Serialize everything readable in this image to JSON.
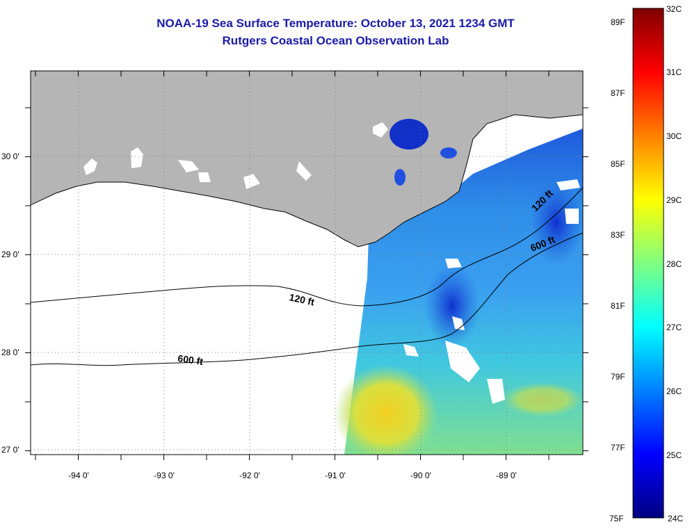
{
  "header": {
    "title": "NOAA-19 Sea Surface Temperature:  October 13, 2021 1234 GMT",
    "subtitle": "Rutgers Coastal Ocean Observation Lab"
  },
  "map": {
    "lat_labels": [
      "30 0'",
      "29 0'",
      "28 0'",
      "27 0'"
    ],
    "lon_labels": [
      "-94 0'",
      "-93 0'",
      "-92 0'",
      "-91 0'",
      "-90 0'",
      "-89 0'"
    ],
    "contours": [
      {
        "label": "120 ft",
        "depth_ft": 120
      },
      {
        "label": "600 ft",
        "depth_ft": 600
      }
    ],
    "colors": {
      "land": "#b5b5b5",
      "no_data": "#ffffff",
      "frame": "#000000"
    }
  },
  "colorbar": {
    "min_c": 24,
    "max_c": 32,
    "celsius_labels": [
      "32C",
      "31C",
      "30C",
      "29C",
      "28C",
      "27C",
      "26C",
      "25C",
      "24C"
    ],
    "fahrenheit_labels": [
      "89F",
      "87F",
      "85F",
      "83F",
      "81F",
      "79F",
      "77F",
      "75F"
    ],
    "stops": [
      "#000080",
      "#0000ff",
      "#0080ff",
      "#00ffff",
      "#80ff80",
      "#ffff00",
      "#ff8000",
      "#ff0000",
      "#800000"
    ]
  }
}
